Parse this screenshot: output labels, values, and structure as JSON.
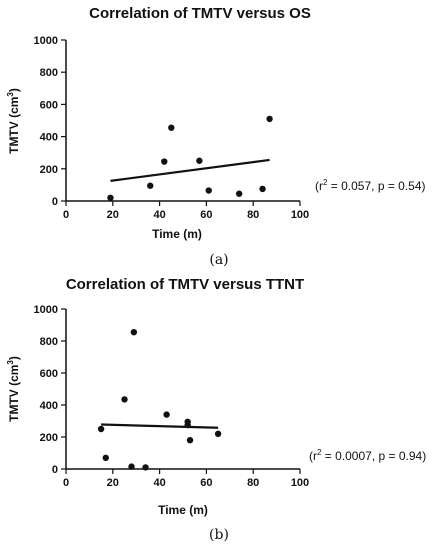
{
  "chart_data": [
    {
      "type": "scatter",
      "title": "Correlation of TMTV versus OS",
      "xlabel": "Time (m)",
      "ylabel": "TMTV (cm³)",
      "ylabel_main": "TMTV (cm",
      "ylabel_sup": "3",
      "ylabel_close": ")",
      "xlim": [
        0,
        100
      ],
      "ylim": [
        0,
        1000
      ],
      "xticks": [
        0,
        20,
        40,
        60,
        80,
        100
      ],
      "yticks": [
        0,
        200,
        400,
        600,
        800,
        1000
      ],
      "xtick_labels": [
        "0",
        "20",
        "40",
        "60",
        "80",
        "100"
      ],
      "ytick_labels": [
        "0",
        "200",
        "400",
        "600",
        "800",
        "1000"
      ],
      "points": [
        {
          "x": 19,
          "y": 20
        },
        {
          "x": 36,
          "y": 95
        },
        {
          "x": 42,
          "y": 245
        },
        {
          "x": 45,
          "y": 455
        },
        {
          "x": 57,
          "y": 250
        },
        {
          "x": 61,
          "y": 65
        },
        {
          "x": 74,
          "y": 45
        },
        {
          "x": 84,
          "y": 75
        },
        {
          "x": 87,
          "y": 510
        }
      ],
      "fit_line": {
        "x": [
          19,
          87
        ],
        "y": [
          125,
          255
        ]
      },
      "grid": false,
      "stat_pre": "(r",
      "stat_sup": "2",
      "stat_post": " = 0.057, p = 0.54)",
      "panel_label": "(a)"
    },
    {
      "type": "scatter",
      "title": "Correlation of TMTV versus TTNT",
      "xlabel": "Time (m)",
      "ylabel": "TMTV (cm³)",
      "ylabel_main": "TMTV (cm",
      "ylabel_sup": "3",
      "ylabel_close": ")",
      "xlim": [
        0,
        100
      ],
      "ylim": [
        0,
        1000
      ],
      "xticks": [
        0,
        20,
        40,
        60,
        80,
        100
      ],
      "yticks": [
        0,
        200,
        400,
        600,
        800,
        1000
      ],
      "xtick_labels": [
        "0",
        "20",
        "40",
        "60",
        "80",
        "100"
      ],
      "ytick_labels": [
        "0",
        "200",
        "400",
        "600",
        "800",
        "1000"
      ],
      "points": [
        {
          "x": 15,
          "y": 250
        },
        {
          "x": 17,
          "y": 70
        },
        {
          "x": 25,
          "y": 435
        },
        {
          "x": 28,
          "y": 15
        },
        {
          "x": 29,
          "y": 855
        },
        {
          "x": 34,
          "y": 10
        },
        {
          "x": 43,
          "y": 340
        },
        {
          "x": 52,
          "y": 295
        },
        {
          "x": 52,
          "y": 275
        },
        {
          "x": 53,
          "y": 180
        },
        {
          "x": 65,
          "y": 220
        }
      ],
      "fit_line": {
        "x": [
          15,
          65
        ],
        "y": [
          278,
          258
        ]
      },
      "grid": false,
      "stat_pre": "(r",
      "stat_sup": "2",
      "stat_post": " = 0.0007, p = 0.94)",
      "panel_label": "(b)"
    }
  ]
}
